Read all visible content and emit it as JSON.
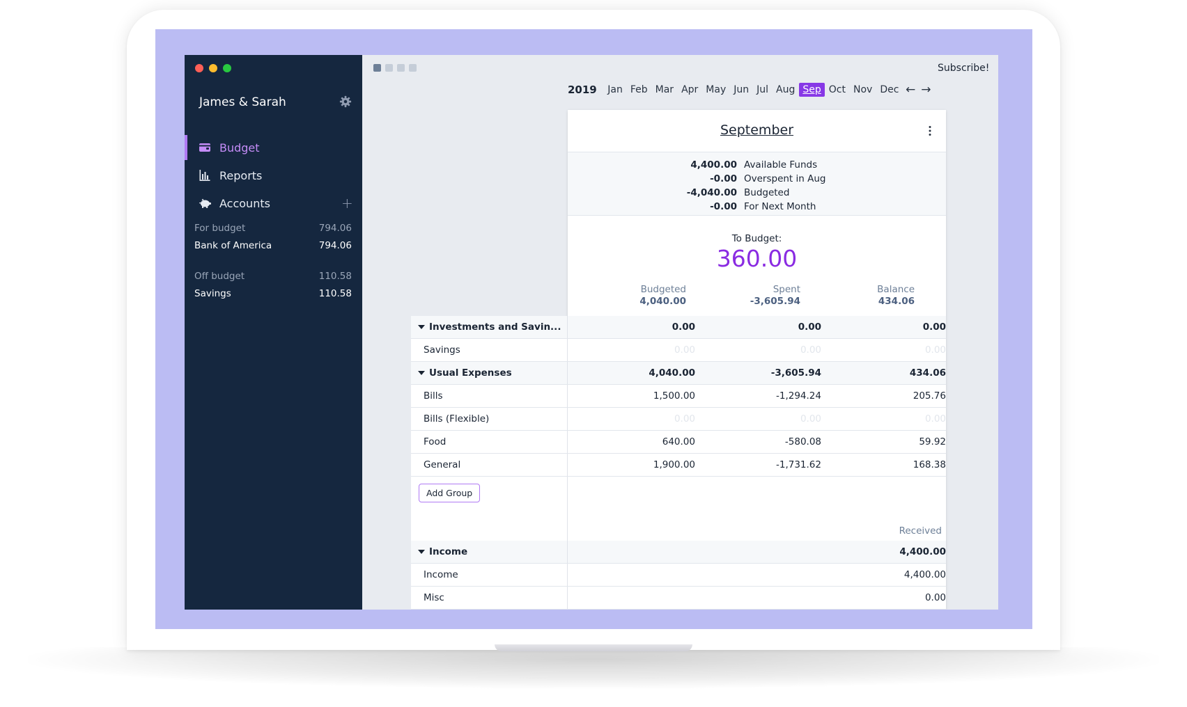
{
  "sidebar": {
    "budget_name": "James & Sarah",
    "nav": [
      {
        "label": "Budget",
        "icon": "wallet-icon",
        "active": true
      },
      {
        "label": "Reports",
        "icon": "bar-chart-icon",
        "active": false
      },
      {
        "label": "Accounts",
        "icon": "piggy-bank-icon",
        "active": false
      }
    ],
    "on_budget": {
      "label": "For budget",
      "total": "794.06",
      "accounts": [
        {
          "name": "Bank of America",
          "balance": "794.06"
        }
      ]
    },
    "off_budget": {
      "label": "Off budget",
      "total": "110.58",
      "accounts": [
        {
          "name": "Savings",
          "balance": "110.58"
        }
      ]
    }
  },
  "header": {
    "subscribe": "Subscribe!"
  },
  "month_bar": {
    "year": "2019",
    "months": [
      "Jan",
      "Feb",
      "Mar",
      "Apr",
      "May",
      "Jun",
      "Jul",
      "Aug",
      "Sep",
      "Oct",
      "Nov",
      "Dec"
    ],
    "selected": "Sep",
    "prev": "←",
    "next": "→"
  },
  "month_card": {
    "title": "September",
    "summary": [
      {
        "value": "4,400.00",
        "label": "Available Funds"
      },
      {
        "value": "-0.00",
        "label": "Overspent in Aug"
      },
      {
        "value": "-4,040.00",
        "label": "Budgeted"
      },
      {
        "value": "-0.00",
        "label": "For Next Month"
      }
    ],
    "to_budget_label": "To Budget:",
    "to_budget_value": "360.00",
    "columns": [
      {
        "label": "Budgeted",
        "total": "4,040.00"
      },
      {
        "label": "Spent",
        "total": "-3,605.94"
      },
      {
        "label": "Balance",
        "total": "434.06"
      }
    ]
  },
  "expense_rows": [
    {
      "type": "group",
      "name": "Investments and Savin...",
      "budgeted": "0.00",
      "spent": "0.00",
      "balance": "0.00"
    },
    {
      "type": "category",
      "name": "Savings",
      "budgeted": "0.00",
      "spent": "0.00",
      "balance": "0.00",
      "muted": true
    },
    {
      "type": "group",
      "name": "Usual Expenses",
      "budgeted": "4,040.00",
      "spent": "-3,605.94",
      "balance": "434.06"
    },
    {
      "type": "category",
      "name": "Bills",
      "budgeted": "1,500.00",
      "spent": "-1,294.24",
      "balance": "205.76"
    },
    {
      "type": "category",
      "name": "Bills (Flexible)",
      "budgeted": "0.00",
      "spent": "0.00",
      "balance": "0.00",
      "muted": true
    },
    {
      "type": "category",
      "name": "Food",
      "budgeted": "640.00",
      "spent": "-580.08",
      "balance": "59.92"
    },
    {
      "type": "category",
      "name": "General",
      "budgeted": "1,900.00",
      "spent": "-1,731.62",
      "balance": "168.38"
    }
  ],
  "add_group_label": "Add Group",
  "income": {
    "column_label": "Received",
    "rows": [
      {
        "type": "group",
        "name": "Income",
        "received": "4,400.00"
      },
      {
        "type": "category",
        "name": "Income",
        "received": "4,400.00"
      },
      {
        "type": "category",
        "name": "Misc",
        "received": "0.00"
      }
    ]
  },
  "colors": {
    "accent": "#8738e6",
    "sidebar": "#15273f",
    "to_budget": "#8a2be2",
    "frame": "#bbbcf3"
  }
}
